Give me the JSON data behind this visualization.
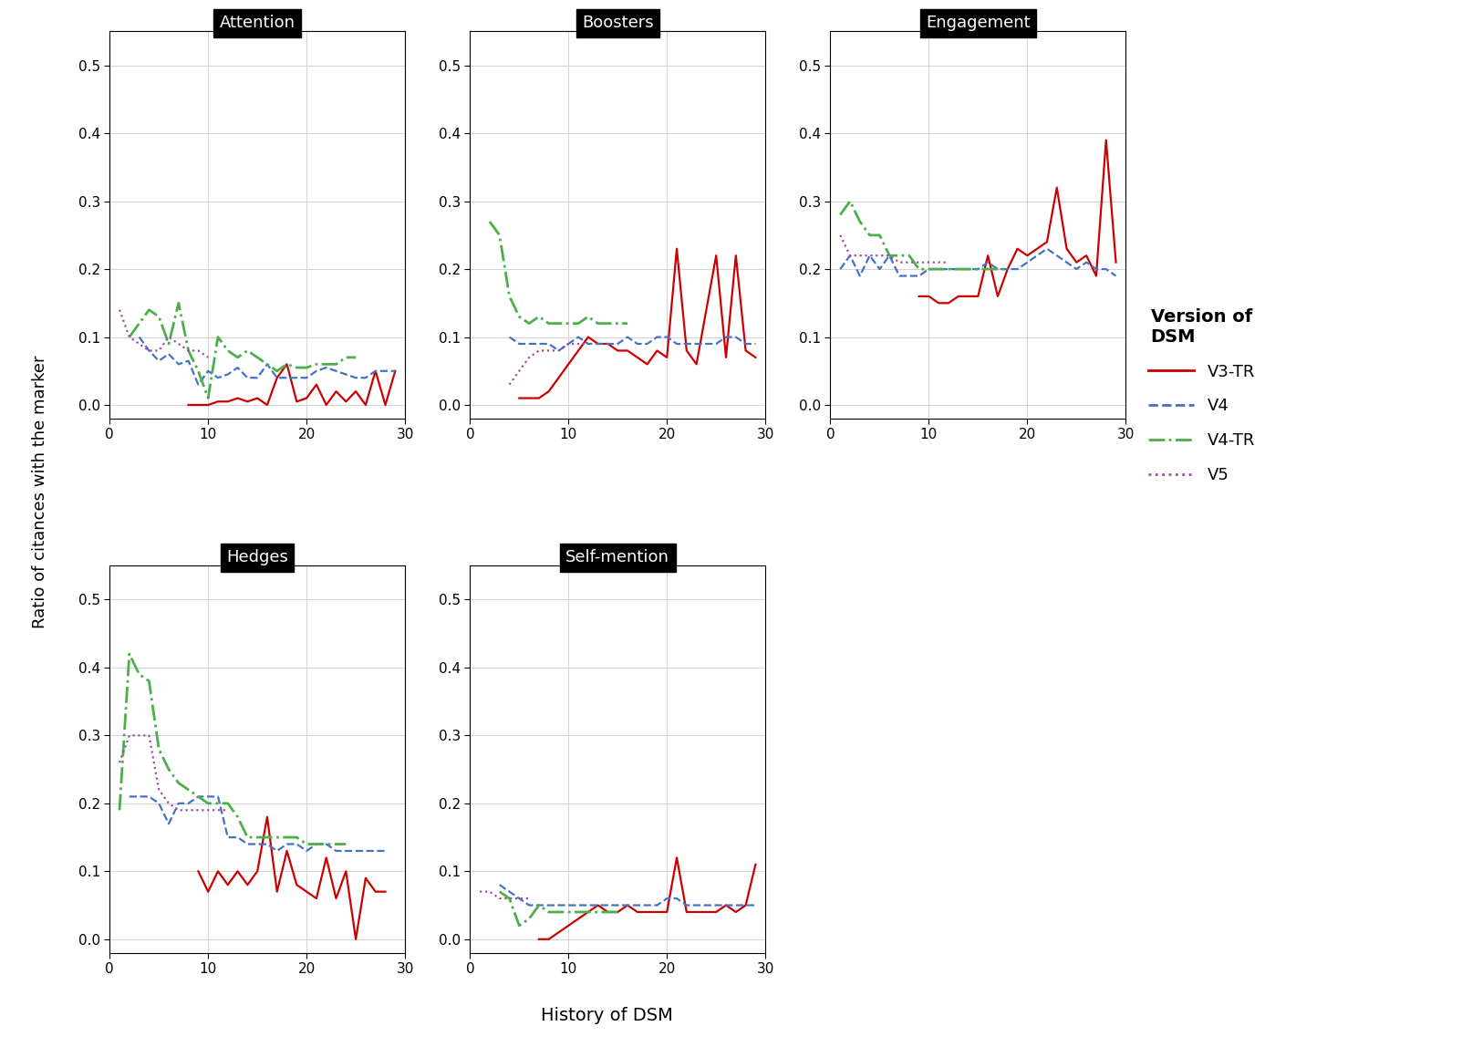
{
  "subplots": [
    "Attention",
    "Boosters",
    "Engagement",
    "Hedges",
    "Self-mention"
  ],
  "xlabel": "History of DSM",
  "ylabel": "Ratio of citances with the marker",
  "legend_title": "Version of\nDSM",
  "legend_entries": [
    "V3-TR",
    "V4",
    "V4-TR",
    "V5"
  ],
  "colors": {
    "V3-TR": "#cc0000",
    "V4": "#4472c4",
    "V4-TR": "#4daf4a",
    "V5": "#984ea3"
  },
  "linestyles": {
    "V3-TR": "solid",
    "V4": "dashed",
    "V4-TR": "dashdot",
    "V5": "dotted"
  },
  "linewidths": {
    "V3-TR": 1.6,
    "V4": 1.6,
    "V4-TR": 2.0,
    "V5": 1.6
  },
  "ylim": [
    -0.02,
    0.55
  ],
  "yticks": [
    0.0,
    0.1,
    0.2,
    0.3,
    0.4,
    0.5
  ],
  "xlim": [
    0,
    30
  ],
  "xticks": [
    0,
    10,
    20,
    30
  ],
  "data": {
    "Attention": {
      "V3-TR": {
        "x": [
          8,
          9,
          10,
          11,
          12,
          13,
          14,
          15,
          16,
          17,
          18,
          19,
          20,
          21,
          22,
          23,
          24,
          25,
          26,
          27,
          28,
          29
        ],
        "y": [
          0.0,
          0.0,
          0.0,
          0.005,
          0.005,
          0.01,
          0.005,
          0.01,
          0.0,
          0.04,
          0.06,
          0.005,
          0.01,
          0.03,
          0.0,
          0.02,
          0.005,
          0.02,
          0.0,
          0.05,
          0.0,
          0.05
        ]
      },
      "V4": {
        "x": [
          3,
          4,
          5,
          6,
          7,
          8,
          9,
          10,
          11,
          12,
          13,
          14,
          15,
          16,
          17,
          18,
          19,
          20,
          21,
          22,
          23,
          24,
          25,
          26,
          27,
          28,
          29
        ],
        "y": [
          0.1,
          0.08,
          0.065,
          0.075,
          0.06,
          0.065,
          0.03,
          0.05,
          0.04,
          0.045,
          0.055,
          0.04,
          0.04,
          0.06,
          0.04,
          0.04,
          0.04,
          0.04,
          0.05,
          0.055,
          0.05,
          0.045,
          0.04,
          0.04,
          0.05,
          0.05,
          0.05
        ]
      },
      "V4-TR": {
        "x": [
          2,
          3,
          4,
          5,
          6,
          7,
          8,
          9,
          10,
          11,
          12,
          13,
          14,
          15,
          16,
          17,
          18,
          19,
          20,
          21,
          22,
          23,
          24,
          25
        ],
        "y": [
          0.1,
          0.12,
          0.14,
          0.13,
          0.09,
          0.15,
          0.08,
          0.05,
          0.01,
          0.1,
          0.08,
          0.07,
          0.08,
          0.07,
          0.06,
          0.05,
          0.06,
          0.055,
          0.055,
          0.06,
          0.06,
          0.06,
          0.07,
          0.07
        ]
      },
      "V5": {
        "x": [
          1,
          2,
          3,
          4,
          5,
          6,
          7,
          8,
          9,
          10
        ],
        "y": [
          0.14,
          0.1,
          0.09,
          0.08,
          0.08,
          0.1,
          0.09,
          0.08,
          0.08,
          0.07
        ]
      }
    },
    "Boosters": {
      "V3-TR": {
        "x": [
          5,
          6,
          7,
          8,
          9,
          10,
          11,
          12,
          13,
          14,
          15,
          16,
          17,
          18,
          19,
          20,
          21,
          22,
          23,
          24,
          25,
          26,
          27,
          28,
          29
        ],
        "y": [
          0.01,
          0.01,
          0.01,
          0.02,
          0.04,
          0.06,
          0.08,
          0.1,
          0.09,
          0.09,
          0.08,
          0.08,
          0.07,
          0.06,
          0.08,
          0.07,
          0.23,
          0.08,
          0.06,
          0.14,
          0.22,
          0.07,
          0.22,
          0.08,
          0.07
        ]
      },
      "V4": {
        "x": [
          4,
          5,
          6,
          7,
          8,
          9,
          10,
          11,
          12,
          13,
          14,
          15,
          16,
          17,
          18,
          19,
          20,
          21,
          22,
          23,
          24,
          25,
          26,
          27,
          28,
          29
        ],
        "y": [
          0.1,
          0.09,
          0.09,
          0.09,
          0.09,
          0.08,
          0.09,
          0.1,
          0.09,
          0.09,
          0.09,
          0.09,
          0.1,
          0.09,
          0.09,
          0.1,
          0.1,
          0.09,
          0.09,
          0.09,
          0.09,
          0.09,
          0.1,
          0.1,
          0.09,
          0.09
        ]
      },
      "V4-TR": {
        "x": [
          2,
          3,
          4,
          5,
          6,
          7,
          8,
          9,
          10,
          11,
          12,
          13,
          14,
          15,
          16
        ],
        "y": [
          0.27,
          0.25,
          0.16,
          0.13,
          0.12,
          0.13,
          0.12,
          0.12,
          0.12,
          0.12,
          0.13,
          0.12,
          0.12,
          0.12,
          0.12
        ]
      },
      "V5": {
        "x": [
          4,
          5,
          6,
          7,
          8,
          9,
          10,
          11,
          12
        ],
        "y": [
          0.03,
          0.05,
          0.07,
          0.08,
          0.08,
          0.08,
          0.09,
          0.09,
          0.09
        ]
      }
    },
    "Engagement": {
      "V3-TR": {
        "x": [
          9,
          10,
          11,
          12,
          13,
          14,
          15,
          16,
          17,
          18,
          19,
          20,
          21,
          22,
          23,
          24,
          25,
          26,
          27,
          28,
          29
        ],
        "y": [
          0.16,
          0.16,
          0.15,
          0.15,
          0.16,
          0.16,
          0.16,
          0.22,
          0.16,
          0.2,
          0.23,
          0.22,
          0.23,
          0.24,
          0.32,
          0.23,
          0.21,
          0.22,
          0.19,
          0.39,
          0.21
        ]
      },
      "V4": {
        "x": [
          1,
          2,
          3,
          4,
          5,
          6,
          7,
          8,
          9,
          10,
          11,
          12,
          13,
          14,
          15,
          16,
          17,
          18,
          19,
          20,
          21,
          22,
          23,
          24,
          25,
          26,
          27,
          28,
          29
        ],
        "y": [
          0.2,
          0.22,
          0.19,
          0.22,
          0.2,
          0.22,
          0.19,
          0.19,
          0.19,
          0.2,
          0.2,
          0.2,
          0.2,
          0.2,
          0.2,
          0.21,
          0.2,
          0.2,
          0.2,
          0.21,
          0.22,
          0.23,
          0.22,
          0.21,
          0.2,
          0.21,
          0.2,
          0.2,
          0.19
        ]
      },
      "V4-TR": {
        "x": [
          1,
          2,
          3,
          4,
          5,
          6,
          7,
          8,
          9,
          10,
          11,
          12,
          13,
          14,
          15,
          16,
          17,
          18
        ],
        "y": [
          0.28,
          0.3,
          0.27,
          0.25,
          0.25,
          0.22,
          0.22,
          0.22,
          0.2,
          0.2,
          0.2,
          0.2,
          0.2,
          0.2,
          0.2,
          0.2,
          0.2,
          0.2
        ]
      },
      "V5": {
        "x": [
          1,
          2,
          3,
          4,
          5,
          6,
          7,
          8,
          9,
          10,
          11,
          12
        ],
        "y": [
          0.25,
          0.22,
          0.22,
          0.22,
          0.22,
          0.22,
          0.21,
          0.21,
          0.21,
          0.21,
          0.21,
          0.21
        ]
      }
    },
    "Hedges": {
      "V3-TR": {
        "x": [
          9,
          10,
          11,
          12,
          13,
          14,
          15,
          16,
          17,
          18,
          19,
          20,
          21,
          22,
          23,
          24,
          25,
          26,
          27,
          28
        ],
        "y": [
          0.1,
          0.07,
          0.1,
          0.08,
          0.1,
          0.08,
          0.1,
          0.18,
          0.07,
          0.13,
          0.08,
          0.07,
          0.06,
          0.12,
          0.06,
          0.1,
          0.0,
          0.09,
          0.07,
          0.07
        ]
      },
      "V4": {
        "x": [
          2,
          3,
          4,
          5,
          6,
          7,
          8,
          9,
          10,
          11,
          12,
          13,
          14,
          15,
          16,
          17,
          18,
          19,
          20,
          21,
          22,
          23,
          24,
          25,
          26,
          27,
          28
        ],
        "y": [
          0.21,
          0.21,
          0.21,
          0.2,
          0.17,
          0.2,
          0.2,
          0.21,
          0.21,
          0.21,
          0.15,
          0.15,
          0.14,
          0.14,
          0.14,
          0.13,
          0.14,
          0.14,
          0.13,
          0.14,
          0.14,
          0.13,
          0.13,
          0.13,
          0.13,
          0.13,
          0.13
        ]
      },
      "V4-TR": {
        "x": [
          1,
          2,
          3,
          4,
          5,
          6,
          7,
          8,
          9,
          10,
          11,
          12,
          13,
          14,
          15,
          16,
          17,
          18,
          19,
          20,
          21,
          22,
          23,
          24
        ],
        "y": [
          0.19,
          0.42,
          0.39,
          0.38,
          0.28,
          0.25,
          0.23,
          0.22,
          0.21,
          0.2,
          0.2,
          0.2,
          0.18,
          0.15,
          0.15,
          0.15,
          0.15,
          0.15,
          0.15,
          0.14,
          0.14,
          0.14,
          0.14,
          0.14
        ]
      },
      "V5": {
        "x": [
          1,
          2,
          3,
          4,
          5,
          6,
          7,
          8,
          9,
          10,
          11,
          12
        ],
        "y": [
          0.26,
          0.3,
          0.3,
          0.3,
          0.22,
          0.2,
          0.19,
          0.19,
          0.19,
          0.19,
          0.19,
          0.19
        ]
      }
    },
    "Self-mention": {
      "V3-TR": {
        "x": [
          7,
          8,
          9,
          10,
          11,
          12,
          13,
          14,
          15,
          16,
          17,
          18,
          19,
          20,
          21,
          22,
          23,
          24,
          25,
          26,
          27,
          28,
          29
        ],
        "y": [
          0.0,
          0.0,
          0.01,
          0.02,
          0.03,
          0.04,
          0.05,
          0.04,
          0.04,
          0.05,
          0.04,
          0.04,
          0.04,
          0.04,
          0.12,
          0.04,
          0.04,
          0.04,
          0.04,
          0.05,
          0.04,
          0.05,
          0.11
        ]
      },
      "V4": {
        "x": [
          3,
          4,
          5,
          6,
          7,
          8,
          9,
          10,
          11,
          12,
          13,
          14,
          15,
          16,
          17,
          18,
          19,
          20,
          21,
          22,
          23,
          24,
          25,
          26,
          27,
          28,
          29
        ],
        "y": [
          0.08,
          0.07,
          0.06,
          0.05,
          0.05,
          0.05,
          0.05,
          0.05,
          0.05,
          0.05,
          0.05,
          0.05,
          0.05,
          0.05,
          0.05,
          0.05,
          0.05,
          0.06,
          0.06,
          0.05,
          0.05,
          0.05,
          0.05,
          0.05,
          0.05,
          0.05,
          0.05
        ]
      },
      "V4-TR": {
        "x": [
          3,
          4,
          5,
          6,
          7,
          8,
          9,
          10,
          11,
          12,
          13,
          14,
          15
        ],
        "y": [
          0.07,
          0.06,
          0.02,
          0.03,
          0.05,
          0.04,
          0.04,
          0.04,
          0.04,
          0.04,
          0.04,
          0.04,
          0.04
        ]
      },
      "V5": {
        "x": [
          1,
          2,
          3,
          4,
          5,
          6
        ],
        "y": [
          0.07,
          0.07,
          0.06,
          0.06,
          0.06,
          0.06
        ]
      }
    }
  }
}
